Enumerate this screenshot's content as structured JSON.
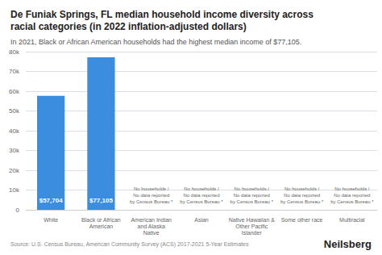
{
  "chart_data": {
    "type": "bar",
    "title": "De Funiak Springs, FL median household income diversity across\nracial categories (in 2022 inflation-adjusted dollars)",
    "subtitle": "In 2021, Black or African American households had the highest median income of $77,105.",
    "categories": [
      "White",
      "Black or African\nAmerican",
      "American Indian\nand Alaska\nNative",
      "Asian",
      "Native Hawaiian &\nOther Pacific\nIslander",
      "Some other race",
      "Multiracial"
    ],
    "values": [
      57704,
      77105,
      0,
      0,
      0,
      0,
      0
    ],
    "value_labels": [
      "$57,704",
      "$77,105",
      null,
      null,
      null,
      null,
      null
    ],
    "data_labels": true,
    "color": "#3b8de0",
    "ylim": [
      0,
      80000
    ],
    "yticks": [
      0,
      {
        "value": 10000,
        "label": "10k"
      },
      {
        "value": 20000,
        "label": "20k"
      },
      {
        "value": 30000,
        "label": "30k"
      },
      {
        "value": 40000,
        "label": "40k"
      },
      {
        "value": 50000,
        "label": "50k"
      },
      {
        "value": 60000,
        "label": "60k"
      },
      {
        "value": 70000,
        "label": "70k"
      },
      {
        "value": 80000,
        "label": "80k"
      }
    ],
    "grid": true,
    "annotations": [
      {
        "category": "American Indian\nand Alaska\nNative",
        "text": "No households /\nNo data reported\nby Census Bureau *"
      },
      {
        "category": "Asian",
        "text": "No households /\nNo data reported\nby Census Bureau *"
      },
      {
        "category": "Native Hawaiian &\nOther Pacific\nIslander",
        "text": "No households /\nNo data reported\nby Census Bureau *"
      },
      {
        "category": "Some other race",
        "text": "No households /\nNo data reported\nby Census Bureau *"
      },
      {
        "category": "Multiracial",
        "text": "No households /\nNo data reported\nby Census Bureau *"
      }
    ],
    "source": "Source: U.S. Census Bureau, American Community Survey (ACS) 2017-2021 5-Year Estimates",
    "brand": "Neilsberg"
  }
}
